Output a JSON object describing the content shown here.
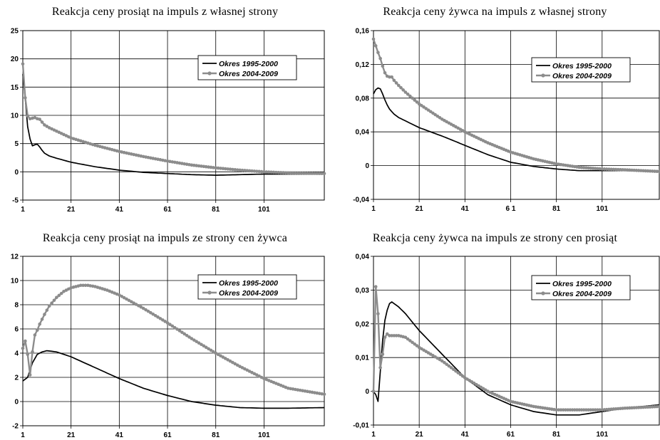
{
  "chart_data": [
    {
      "type": "line",
      "title": "Reakcja ceny prosiąt na impuls z własnej strony",
      "x_ticks": [
        "1",
        "21",
        "41",
        "61",
        "81",
        "101"
      ],
      "y_ticks": [
        "25",
        "20",
        "15",
        "10",
        "5",
        "0",
        "-5"
      ],
      "ylim": [
        -5,
        25
      ],
      "xlim": [
        1,
        126
      ],
      "grid": true,
      "legend": "top-right",
      "series": [
        {
          "name": "Okres 1995-2000",
          "color": "#000000",
          "marker": "none",
          "x": [
            1,
            2,
            3,
            4,
            5,
            6,
            7,
            8,
            9,
            10,
            12,
            15,
            21,
            31,
            41,
            51,
            61,
            71,
            81,
            91,
            101,
            111,
            126
          ],
          "y": [
            17.3,
            13,
            8,
            5.8,
            4.6,
            4.8,
            4.9,
            4.4,
            3.8,
            3.3,
            2.8,
            2.4,
            1.7,
            0.9,
            0.3,
            -0.1,
            -0.3,
            -0.5,
            -0.6,
            -0.5,
            -0.4,
            -0.4,
            -0.4
          ]
        },
        {
          "name": "Okres 2004-2009",
          "color": "#8c8c8c",
          "marker": "circle",
          "x": [
            1,
            2,
            3,
            4,
            5,
            6,
            7,
            8,
            9,
            10,
            12,
            15,
            21,
            31,
            41,
            51,
            61,
            71,
            81,
            91,
            101,
            111,
            126
          ],
          "y": [
            19.1,
            13.1,
            9.9,
            9.4,
            9.5,
            9.6,
            9.4,
            9.3,
            8.8,
            8.3,
            7.8,
            7.2,
            6.0,
            4.7,
            3.6,
            2.7,
            1.9,
            1.2,
            0.7,
            0.3,
            0.0,
            -0.2,
            -0.3
          ]
        }
      ]
    },
    {
      "type": "line",
      "title": "Reakcja ceny żywca na impuls z własnej strony",
      "x_ticks": [
        "1",
        "21",
        "41",
        "6 1",
        "81",
        "101"
      ],
      "y_ticks": [
        "0,16",
        "0,12",
        "0,08",
        "0,04",
        "0",
        "-0,04"
      ],
      "ylim": [
        -0.04,
        0.16
      ],
      "xlim": [
        1,
        126
      ],
      "grid": true,
      "legend": "top-right",
      "series": [
        {
          "name": "Okres 1995-2000",
          "color": "#000000",
          "marker": "none",
          "x": [
            1,
            2,
            3,
            4,
            5,
            6,
            7,
            8,
            10,
            12,
            15,
            21,
            31,
            41,
            51,
            61,
            71,
            81,
            91,
            101,
            111,
            126
          ],
          "y": [
            0.085,
            0.09,
            0.092,
            0.091,
            0.085,
            0.078,
            0.072,
            0.067,
            0.061,
            0.057,
            0.053,
            0.045,
            0.035,
            0.024,
            0.013,
            0.004,
            -0.001,
            -0.004,
            -0.006,
            -0.006,
            -0.006,
            -0.007
          ]
        },
        {
          "name": "Okres 2004-2009",
          "color": "#8c8c8c",
          "marker": "circle",
          "x": [
            1,
            2,
            3,
            4,
            5,
            6,
            7,
            8,
            9,
            10,
            12,
            15,
            21,
            31,
            41,
            51,
            61,
            71,
            81,
            91,
            101,
            111,
            126
          ],
          "y": [
            0.15,
            0.142,
            0.134,
            0.127,
            0.118,
            0.11,
            0.106,
            0.105,
            0.105,
            0.101,
            0.095,
            0.087,
            0.073,
            0.055,
            0.04,
            0.027,
            0.016,
            0.008,
            0.002,
            -0.002,
            -0.004,
            -0.005,
            -0.007
          ]
        }
      ]
    },
    {
      "type": "line",
      "title": "Reakcja ceny prosiąt na impuls ze strony cen żywca",
      "x_ticks": [
        "1",
        "21",
        "41",
        "61",
        "81",
        "101"
      ],
      "y_ticks": [
        "12",
        "10",
        "8",
        "6",
        "4",
        "2",
        "0",
        "-2"
      ],
      "ylim": [
        -2,
        12
      ],
      "xlim": [
        1,
        126
      ],
      "grid": true,
      "legend": "top-right",
      "series": [
        {
          "name": "Okres 1995-2000",
          "color": "#000000",
          "marker": "none",
          "x": [
            1,
            3,
            5,
            7,
            9,
            11,
            15,
            21,
            31,
            41,
            51,
            61,
            71,
            81,
            91,
            101,
            111,
            126
          ],
          "y": [
            1.7,
            2.0,
            3.2,
            3.9,
            4.1,
            4.2,
            4.1,
            3.7,
            2.8,
            1.9,
            1.1,
            0.5,
            0.0,
            -0.3,
            -0.5,
            -0.55,
            -0.55,
            -0.5
          ]
        },
        {
          "name": "Okres 2004-2009",
          "color": "#8c8c8c",
          "marker": "circle",
          "x": [
            1,
            2,
            3,
            4,
            5,
            6,
            7,
            8,
            10,
            12,
            15,
            18,
            21,
            25,
            28,
            31,
            36,
            41,
            51,
            61,
            71,
            81,
            91,
            101,
            111,
            126
          ],
          "y": [
            4.4,
            5.0,
            3.9,
            2.2,
            4.1,
            5.5,
            5.9,
            6.4,
            7.2,
            7.9,
            8.6,
            9.1,
            9.4,
            9.6,
            9.6,
            9.5,
            9.2,
            8.8,
            7.7,
            6.5,
            5.2,
            4.0,
            2.9,
            1.9,
            1.1,
            0.6
          ]
        }
      ]
    },
    {
      "type": "line",
      "title": "Reakcja ceny żywca na impuls ze strony cen prosiąt",
      "x_ticks": [
        "1",
        "21",
        "41",
        "61",
        "81",
        "101"
      ],
      "y_ticks": [
        "0,04",
        "0,03",
        "0,02",
        "0,01",
        "0",
        "-0,01"
      ],
      "ylim": [
        -0.01,
        0.04
      ],
      "xlim": [
        1,
        126
      ],
      "grid": true,
      "legend": "top-right",
      "series": [
        {
          "name": "Okres 1995-2000",
          "color": "#000000",
          "marker": "none",
          "x": [
            1,
            2,
            3,
            4,
            5,
            6,
            7,
            8,
            9,
            10,
            11,
            12,
            15,
            21,
            31,
            41,
            51,
            61,
            71,
            81,
            91,
            101,
            111,
            126
          ],
          "y": [
            0.0,
            -0.001,
            -0.003,
            0.006,
            0.015,
            0.021,
            0.024,
            0.026,
            0.0265,
            0.026,
            0.0255,
            0.025,
            0.023,
            0.018,
            0.011,
            0.004,
            -0.001,
            -0.004,
            -0.006,
            -0.007,
            -0.007,
            -0.006,
            -0.005,
            -0.004
          ]
        },
        {
          "name": "Okres 2004-2009",
          "color": "#8c8c8c",
          "marker": "circle",
          "x": [
            1,
            2,
            3,
            4,
            5,
            6,
            7,
            8,
            9,
            10,
            11,
            12,
            15,
            21,
            31,
            41,
            51,
            61,
            71,
            81,
            91,
            101,
            111,
            126
          ],
          "y": [
            0.0,
            0.031,
            0.023,
            0.007,
            0.011,
            0.016,
            0.017,
            0.0165,
            0.0165,
            0.0165,
            0.0165,
            0.0165,
            0.016,
            0.013,
            0.009,
            0.004,
            0.0,
            -0.003,
            -0.0045,
            -0.0055,
            -0.0055,
            -0.0055,
            -0.005,
            -0.0045
          ]
        }
      ]
    }
  ]
}
